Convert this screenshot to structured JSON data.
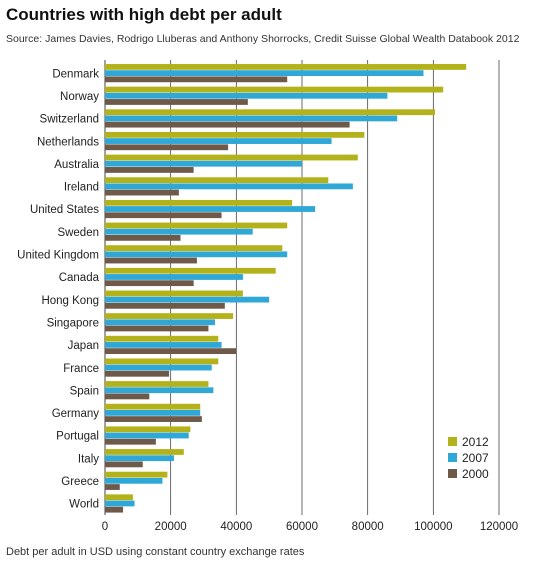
{
  "chart_data": {
    "type": "bar",
    "orientation": "horizontal",
    "title": "Countries with high debt per adult",
    "subtitle": "Source: James Davies, Rodrigo Lluberas and Anthony Shorrocks, Credit Suisse Global Wealth Databook 2012",
    "xlabel": "Debt per adult in USD using constant country exchange rates",
    "ylabel": "",
    "xlim": [
      0,
      120000
    ],
    "xticks": [
      0,
      20000,
      40000,
      60000,
      80000,
      100000,
      120000
    ],
    "xtick_labels": [
      "0",
      "20000",
      "40000",
      "60000",
      "80000",
      "100000",
      "120000"
    ],
    "grid": "vertical",
    "legend_position": "bottom-right",
    "categories": [
      "Denmark",
      "Norway",
      "Switzerland",
      "Netherlands",
      "Australia",
      "Ireland",
      "United States",
      "Sweden",
      "United Kingdom",
      "Canada",
      "Hong Kong",
      "Singapore",
      "Japan",
      "France",
      "Spain",
      "Germany",
      "Portugal",
      "Italy",
      "Greece",
      "World"
    ],
    "series": [
      {
        "name": "2012",
        "color": "#b3b21a",
        "values": [
          110000,
          103000,
          100500,
          79000,
          77000,
          68000,
          57000,
          55500,
          54000,
          52000,
          42000,
          39000,
          34500,
          34500,
          31500,
          29000,
          26000,
          24000,
          19000,
          8500
        ]
      },
      {
        "name": "2007",
        "color": "#2fa8d8",
        "values": [
          97000,
          86000,
          89000,
          69000,
          60000,
          75500,
          64000,
          45000,
          55500,
          42000,
          50000,
          33500,
          35500,
          32500,
          33000,
          29000,
          25500,
          21000,
          17500,
          9000
        ]
      },
      {
        "name": "2000",
        "color": "#6f5a4a",
        "values": [
          55500,
          43500,
          74500,
          37500,
          27000,
          22500,
          35500,
          23000,
          28000,
          27000,
          36500,
          31500,
          40000,
          19500,
          13500,
          29500,
          15500,
          11500,
          4500,
          5500
        ]
      }
    ]
  }
}
